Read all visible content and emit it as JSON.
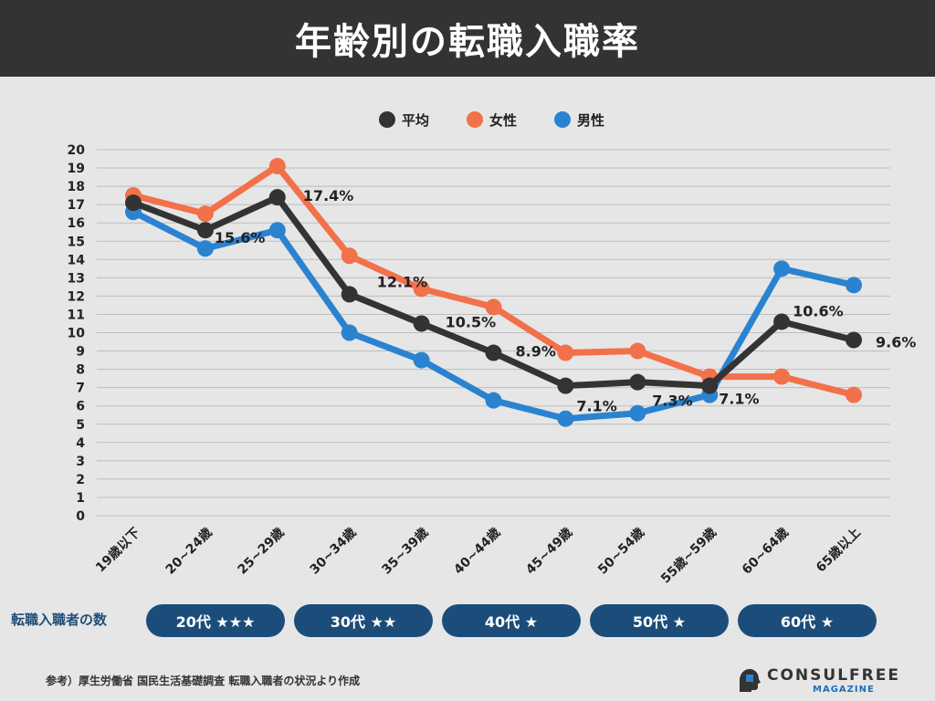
{
  "title": "年齢別の転職入職率",
  "chart_data": {
    "type": "line",
    "categories": [
      "19歳以下",
      "20~24歳",
      "25~29歳",
      "30~34歳",
      "35~39歳",
      "40~44歳",
      "45~49歳",
      "50~54歳",
      "55歳~59歳",
      "60~64歳",
      "65歳以上"
    ],
    "ylim": [
      0,
      20
    ],
    "yticks": [
      0,
      1,
      2,
      3,
      4,
      5,
      6,
      7,
      8,
      9,
      10,
      11,
      12,
      13,
      14,
      15,
      16,
      17,
      18,
      19,
      20
    ],
    "grid": true,
    "legend_position": "top-center",
    "series": [
      {
        "name": "平均",
        "color": "#333333",
        "values": [
          17.1,
          15.6,
          17.4,
          12.1,
          10.5,
          8.9,
          7.1,
          7.3,
          7.1,
          10.6,
          9.6
        ],
        "labels": [
          "",
          "15.6%",
          "17.4%",
          "12.1%",
          "10.5%",
          "8.9%",
          "7.1%",
          "7.3%",
          "7.1%",
          "10.6%",
          "9.6%"
        ]
      },
      {
        "name": "女性",
        "color": "#f2704a",
        "values": [
          17.5,
          16.5,
          19.1,
          14.2,
          12.4,
          11.4,
          8.9,
          9.0,
          7.6,
          7.6,
          6.6
        ]
      },
      {
        "name": "男性",
        "color": "#2a83d0",
        "values": [
          16.6,
          14.6,
          15.6,
          10.0,
          8.5,
          6.3,
          5.3,
          5.6,
          6.6,
          13.5,
          12.6
        ]
      }
    ]
  },
  "counts": {
    "label": "転職入職者の数",
    "items": [
      "20代 ★★★",
      "30代 ★★",
      "40代 ★",
      "50代 ★",
      "60代 ★"
    ]
  },
  "source": "参考）厚生労働省 国民生活基礎調査 転職入職者の状況より作成",
  "logo": {
    "title": "CONSULFREE",
    "subtitle": "MAGAZINE"
  }
}
